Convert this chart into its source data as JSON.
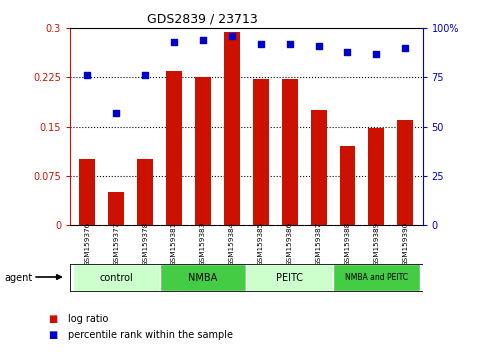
{
  "title": "GDS2839 / 23713",
  "categories": [
    "GSM159376",
    "GSM159377",
    "GSM159378",
    "GSM159381",
    "GSM159383",
    "GSM159384",
    "GSM159385",
    "GSM159386",
    "GSM159387",
    "GSM159388",
    "GSM159389",
    "GSM159390"
  ],
  "log_ratio": [
    0.1,
    0.05,
    0.1,
    0.235,
    0.225,
    0.295,
    0.222,
    0.222,
    0.175,
    0.12,
    0.148,
    0.16
  ],
  "percentile_rank": [
    76,
    57,
    76,
    93,
    94,
    96,
    92,
    92,
    91,
    88,
    87,
    90
  ],
  "bar_color": "#cc1100",
  "dot_color": "#0000cc",
  "groups": [
    {
      "label": "control",
      "start": 0,
      "end": 3,
      "color": "#ccffcc"
    },
    {
      "label": "NMBA",
      "start": 3,
      "end": 6,
      "color": "#44cc44"
    },
    {
      "label": "PEITC",
      "start": 6,
      "end": 9,
      "color": "#ccffcc"
    },
    {
      "label": "NMBA and PEITC",
      "start": 9,
      "end": 12,
      "color": "#44cc44"
    }
  ],
  "ylim_left": [
    0,
    0.3
  ],
  "ylim_right": [
    0,
    100
  ],
  "yticks_left": [
    0,
    0.075,
    0.15,
    0.225,
    0.3
  ],
  "yticks_right": [
    0,
    25,
    50,
    75,
    100
  ],
  "ytick_labels_left": [
    "0",
    "0.075",
    "0.15",
    "0.225",
    "0.3"
  ],
  "ytick_labels_right": [
    "0",
    "25",
    "50",
    "75",
    "100%"
  ],
  "hlines": [
    0.075,
    0.15,
    0.225
  ],
  "legend_bar_label": "log ratio",
  "legend_dot_label": "percentile rank within the sample",
  "agent_label": "agent",
  "left_axis_color": "#cc1100",
  "right_axis_color": "#0000cc",
  "background_color": "#ffffff",
  "plot_bg_color": "#ffffff",
  "tick_label_bg_color": "#cccccc",
  "bar_width": 0.55
}
